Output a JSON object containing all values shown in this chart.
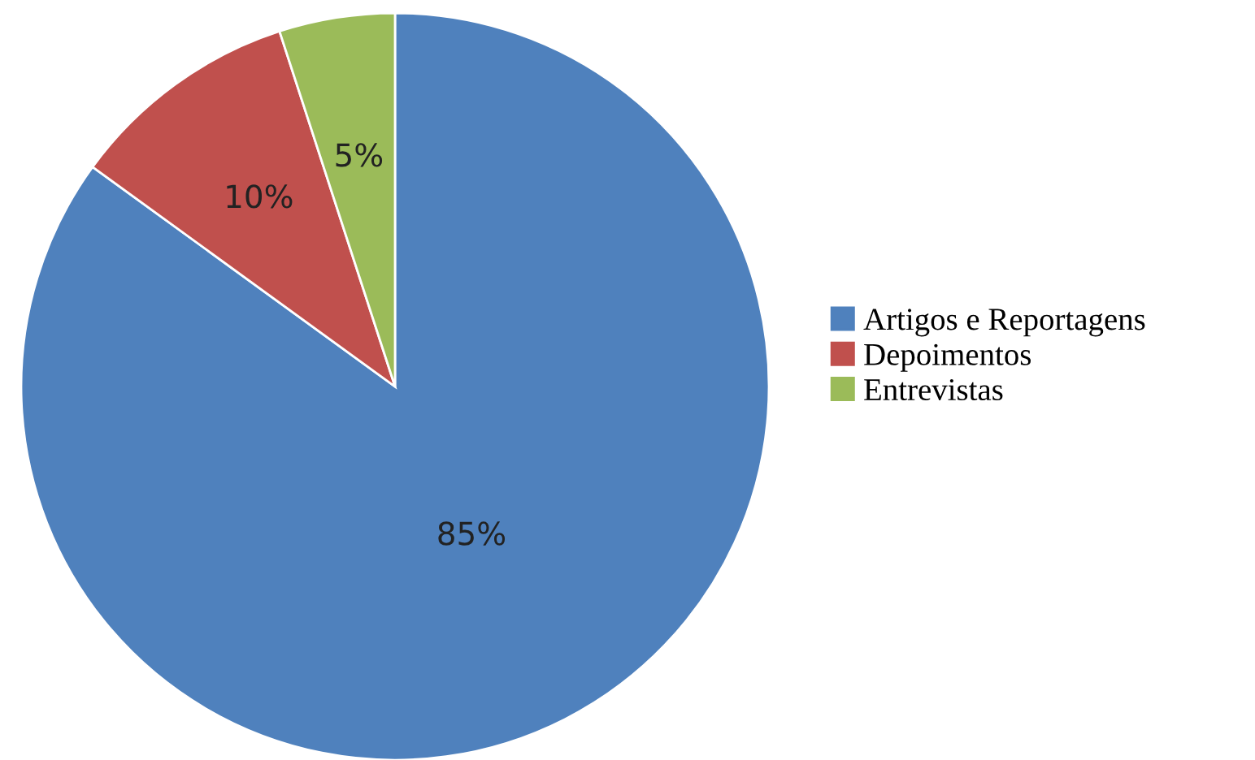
{
  "chart_data": {
    "type": "pie",
    "categories": [
      "Artigos e Reportagens",
      "Depoimentos",
      "Entrevistas"
    ],
    "values": [
      85,
      10,
      5
    ],
    "colors": [
      "#4f81bd",
      "#c0504d",
      "#9bbb59"
    ],
    "value_labels": [
      "85%",
      "10%",
      "5%"
    ],
    "legend": "right"
  }
}
